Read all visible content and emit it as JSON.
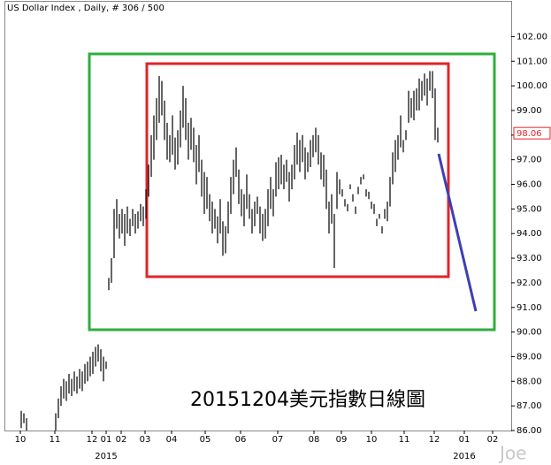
{
  "chart_data": {
    "type": "range",
    "title": "US Dollar Index , Daily, # 306 / 500",
    "annotation": "20151204美元指數日線圖",
    "watermark": "Joe",
    "color": "#000000",
    "last_value": 98.06,
    "ylim": [
      86,
      103.2
    ],
    "yticks": [
      {
        "value": 86,
        "label": "86.00"
      },
      {
        "value": 87,
        "label": "87.00"
      },
      {
        "value": 88,
        "label": "88.00"
      },
      {
        "value": 89,
        "label": "89.00"
      },
      {
        "value": 90,
        "label": "90.00"
      },
      {
        "value": 91,
        "label": "91.00"
      },
      {
        "value": 92,
        "label": "92.00"
      },
      {
        "value": 93,
        "label": "93.00"
      },
      {
        "value": 94,
        "label": "94.00"
      },
      {
        "value": 95,
        "label": "95.00"
      },
      {
        "value": 96,
        "label": "96.00"
      },
      {
        "value": 97,
        "label": "97.00"
      },
      {
        "value": 98,
        "label": "98.00"
      },
      {
        "value": 99,
        "label": "99.00"
      },
      {
        "value": 100,
        "label": "100.00"
      },
      {
        "value": 101,
        "label": "101.00"
      },
      {
        "value": 102,
        "label": "102.00"
      }
    ],
    "xlim": [
      0,
      572
    ],
    "xticks": [
      {
        "value": 17,
        "label": "10"
      },
      {
        "value": 56,
        "label": "11"
      },
      {
        "value": 98,
        "label": "12"
      },
      {
        "value": 114,
        "label": "01"
      },
      {
        "value": 131,
        "label": "02"
      },
      {
        "value": 158,
        "label": "03"
      },
      {
        "value": 188,
        "label": "04"
      },
      {
        "value": 226,
        "label": "05"
      },
      {
        "value": 266,
        "label": "06"
      },
      {
        "value": 308,
        "label": "07"
      },
      {
        "value": 349,
        "label": "08"
      },
      {
        "value": 380,
        "label": "09"
      },
      {
        "value": 414,
        "label": "10"
      },
      {
        "value": 451,
        "label": "11"
      },
      {
        "value": 485,
        "label": "12"
      },
      {
        "value": 519,
        "label": "01"
      },
      {
        "value": 551,
        "label": "02"
      }
    ],
    "year_labels": [
      {
        "value": 114,
        "label": "2015"
      },
      {
        "value": 519,
        "label": "2016"
      }
    ],
    "x": [
      18,
      21,
      24,
      57,
      60,
      63,
      66,
      69,
      72,
      75,
      78,
      81,
      84,
      87,
      90,
      93,
      96,
      99,
      102,
      105,
      108,
      111,
      114,
      117,
      120,
      123,
      126,
      129,
      132,
      135,
      138,
      141,
      144,
      147,
      150,
      153,
      156,
      159,
      162,
      165,
      168,
      171,
      174,
      177,
      180,
      183,
      186,
      189,
      192,
      195,
      198,
      201,
      204,
      207,
      210,
      213,
      216,
      219,
      222,
      225,
      228,
      231,
      234,
      237,
      240,
      243,
      246,
      249,
      252,
      255,
      258,
      261,
      264,
      267,
      270,
      273,
      276,
      279,
      282,
      285,
      288,
      291,
      294,
      297,
      300,
      303,
      306,
      309,
      312,
      315,
      318,
      321,
      324,
      327,
      330,
      333,
      336,
      339,
      342,
      345,
      348,
      351,
      354,
      357,
      360,
      363,
      366,
      369,
      372,
      375,
      378,
      381,
      384,
      387,
      390,
      393,
      396,
      399,
      402,
      405,
      408,
      411,
      414,
      417,
      420,
      423,
      426,
      429,
      432,
      435,
      438,
      441,
      444,
      447,
      450,
      453,
      456,
      459,
      462,
      465,
      468,
      471,
      474,
      477,
      480,
      483,
      486,
      489
    ],
    "low": [
      86.1,
      86.3,
      86.0,
      86.0,
      86.5,
      87.0,
      87.3,
      87.2,
      87.5,
      87.4,
      87.6,
      87.5,
      87.7,
      87.6,
      87.9,
      88.0,
      88.2,
      88.3,
      88.6,
      88.8,
      88.4,
      88.0,
      88.5,
      91.7,
      92.0,
      93.0,
      94.2,
      93.8,
      94.0,
      93.5,
      94.0,
      93.9,
      94.3,
      94.0,
      94.2,
      94.5,
      94.3,
      94.6,
      95.5,
      96.3,
      97.0,
      97.8,
      98.5,
      98.8,
      97.8,
      97.0,
      96.9,
      97.2,
      96.6,
      96.8,
      97.5,
      98.3,
      97.8,
      97.0,
      97.4,
      96.9,
      96.0,
      96.5,
      95.5,
      94.8,
      95.0,
      94.5,
      94.0,
      94.2,
      93.6,
      94.0,
      93.1,
      93.2,
      94.0,
      94.8,
      95.6,
      96.3,
      95.2,
      94.7,
      94.3,
      95.0,
      94.6,
      94.0,
      94.3,
      94.8,
      94.0,
      93.7,
      93.8,
      94.3,
      95.0,
      94.7,
      95.5,
      95.8,
      96.0,
      95.8,
      96.1,
      95.3,
      95.8,
      96.2,
      96.8,
      96.5,
      96.9,
      96.2,
      96.5,
      96.7,
      97.1,
      97.3,
      96.8,
      96.2,
      95.9,
      95.0,
      94.0,
      94.4,
      92.6,
      95.0,
      95.6,
      95.5,
      95.1,
      94.9,
      95.8,
      95.3,
      94.8,
      95.6,
      96.0,
      96.2,
      95.5,
      95.4,
      95.0,
      94.8,
      94.3,
      94.6,
      94.0,
      94.6,
      94.5,
      95.1,
      96.0,
      96.5,
      97.0,
      97.5,
      97.3,
      97.8,
      98.5,
      98.7,
      98.6,
      99.0,
      99.0,
      99.4,
      99.6,
      99.2,
      99.8,
      99.5,
      97.8,
      97.7
    ],
    "high": [
      86.8,
      86.7,
      86.5,
      86.7,
      87.3,
      87.8,
      88.1,
      88.0,
      88.3,
      88.1,
      88.4,
      88.2,
      88.5,
      88.4,
      88.7,
      88.8,
      89.0,
      89.2,
      89.4,
      89.5,
      89.3,
      89.0,
      88.8,
      92.2,
      93.0,
      95.0,
      95.4,
      94.8,
      95.0,
      94.8,
      95.1,
      94.6,
      95.0,
      94.8,
      94.9,
      95.2,
      95.1,
      95.8,
      96.8,
      98.0,
      98.8,
      99.5,
      100.4,
      100.2,
      99.4,
      98.5,
      98.0,
      98.8,
      97.9,
      98.2,
      99.0,
      100.0,
      99.5,
      98.5,
      98.7,
      98.3,
      97.6,
      98.0,
      97.0,
      96.5,
      96.3,
      95.6,
      95.3,
      95.0,
      94.7,
      95.4,
      94.5,
      94.3,
      95.3,
      96.3,
      97.0,
      97.5,
      96.6,
      95.8,
      95.6,
      96.4,
      95.6,
      95.0,
      95.3,
      95.5,
      95.1,
      94.8,
      95.0,
      95.8,
      96.3,
      95.8,
      96.9,
      97.1,
      97.2,
      96.8,
      97.0,
      96.5,
      96.8,
      97.6,
      98.1,
      97.8,
      98.0,
      97.5,
      97.3,
      97.8,
      98.0,
      98.3,
      98.0,
      97.3,
      97.2,
      96.6,
      95.3,
      95.6,
      94.8,
      96.5,
      96.2,
      95.8,
      95.4,
      95.2,
      96.0,
      95.6,
      95.1,
      95.9,
      96.3,
      96.4,
      95.8,
      95.7,
      95.3,
      95.2,
      94.6,
      94.8,
      94.3,
      95.0,
      95.3,
      96.3,
      97.3,
      97.8,
      98.0,
      98.8,
      97.8,
      98.2,
      99.8,
      99.5,
      99.8,
      99.9,
      100.3,
      100.2,
      100.5,
      100.3,
      100.6,
      100.6,
      99.9,
      98.3
    ]
  }
}
